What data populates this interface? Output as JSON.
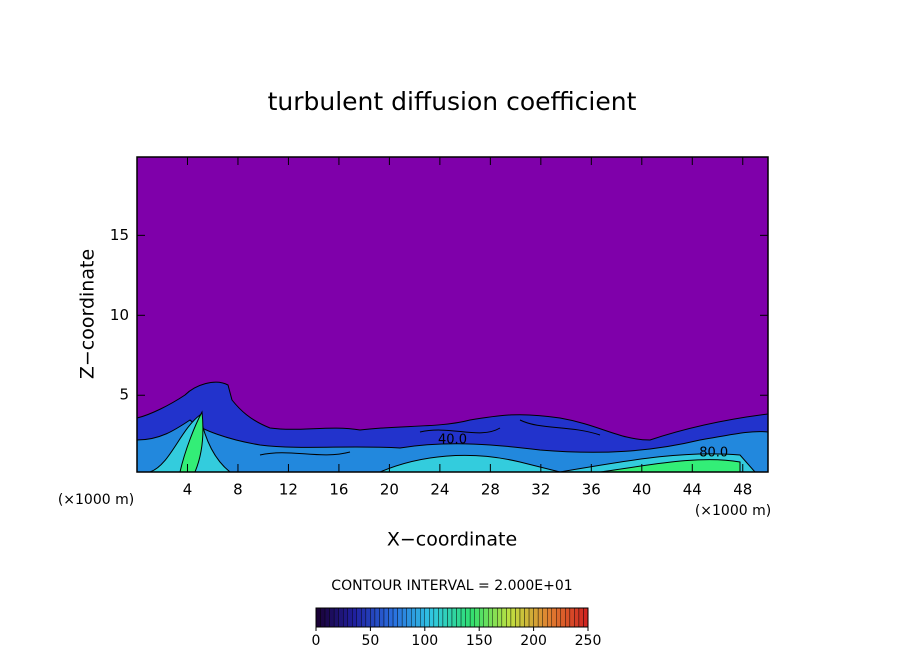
{
  "chart_data": {
    "type": "contour",
    "title": "turbulent diffusion coefficient",
    "x_label": "X−coordinate",
    "y_label": "Z−coordinate",
    "x_unit_labels": [
      "(×1000 m)",
      "(×1000 m)"
    ],
    "xlim": [
      0,
      50
    ],
    "xticks": [
      4,
      8,
      12,
      16,
      20,
      24,
      28,
      32,
      36,
      40,
      44,
      48
    ],
    "ylim": [
      0.2,
      19.9
    ],
    "yticks": [
      5,
      10,
      15
    ],
    "background_color": "#7f00aa",
    "contour_labels": [
      {
        "x": 25.0,
        "y": 2.2,
        "value": 40,
        "label": "40.0"
      },
      {
        "x": 45.7,
        "y": 1.4,
        "value": 80,
        "label": "80.0"
      }
    ],
    "contour_interval_text": "CONTOUR INTERVAL = 2.000E+01",
    "colorbar": {
      "lim": [
        0,
        250
      ],
      "ticks": [
        0,
        50,
        100,
        150,
        200,
        250
      ],
      "colormap": [
        "#1a0030",
        "#2020a0",
        "#2a70e0",
        "#30c8e0",
        "#30e070",
        "#c0e040",
        "#e08030",
        "#d02020"
      ]
    }
  }
}
